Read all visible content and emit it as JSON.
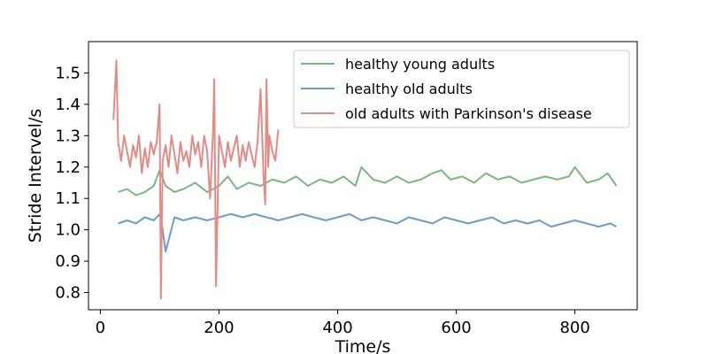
{
  "chart_data": {
    "type": "line",
    "title": "",
    "xlabel": "Time/s",
    "ylabel": "Stride Intervel/s",
    "xlim": [
      -20,
      905
    ],
    "ylim": [
      0.745,
      1.6
    ],
    "xticks": [
      0,
      200,
      400,
      600,
      800
    ],
    "xtick_labels": [
      "0",
      "200",
      "400",
      "600",
      "800"
    ],
    "yticks": [
      0.8,
      0.9,
      1.0,
      1.1,
      1.2,
      1.3,
      1.4,
      1.5
    ],
    "ytick_labels": [
      "0.8",
      "0.9",
      "1.0",
      "1.1",
      "1.2",
      "1.3",
      "1.4",
      "1.5"
    ],
    "grid": false,
    "legend_position": "top-right",
    "series": [
      {
        "name": "healthy young adults",
        "color": "#77b97f",
        "x": [
          30,
          45,
          60,
          75,
          90,
          100,
          110,
          125,
          140,
          160,
          180,
          200,
          215,
          230,
          250,
          270,
          290,
          310,
          330,
          350,
          370,
          390,
          410,
          430,
          440,
          460,
          480,
          500,
          520,
          540,
          560,
          575,
          590,
          610,
          630,
          650,
          670,
          690,
          710,
          730,
          750,
          770,
          790,
          800,
          820,
          840,
          855,
          870
        ],
        "y": [
          1.12,
          1.13,
          1.11,
          1.12,
          1.14,
          1.19,
          1.14,
          1.12,
          1.13,
          1.15,
          1.12,
          1.14,
          1.17,
          1.13,
          1.15,
          1.14,
          1.16,
          1.15,
          1.17,
          1.14,
          1.16,
          1.15,
          1.17,
          1.14,
          1.2,
          1.16,
          1.15,
          1.17,
          1.15,
          1.16,
          1.18,
          1.19,
          1.16,
          1.17,
          1.15,
          1.18,
          1.16,
          1.17,
          1.15,
          1.16,
          1.17,
          1.16,
          1.17,
          1.2,
          1.15,
          1.16,
          1.18,
          1.14
        ]
      },
      {
        "name": "healthy old adults",
        "color": "#6b9ccf",
        "x": [
          30,
          45,
          60,
          75,
          90,
          100,
          105,
          110,
          125,
          140,
          160,
          180,
          200,
          220,
          240,
          260,
          280,
          300,
          320,
          340,
          360,
          380,
          400,
          420,
          440,
          460,
          480,
          500,
          520,
          540,
          560,
          580,
          600,
          620,
          640,
          660,
          680,
          700,
          720,
          740,
          760,
          780,
          800,
          820,
          840,
          860,
          870
        ],
        "y": [
          1.02,
          1.03,
          1.02,
          1.04,
          1.03,
          1.05,
          1.0,
          0.93,
          1.04,
          1.03,
          1.04,
          1.03,
          1.04,
          1.05,
          1.04,
          1.05,
          1.04,
          1.03,
          1.04,
          1.05,
          1.04,
          1.03,
          1.04,
          1.05,
          1.03,
          1.04,
          1.03,
          1.02,
          1.04,
          1.03,
          1.02,
          1.04,
          1.03,
          1.02,
          1.03,
          1.04,
          1.02,
          1.03,
          1.02,
          1.03,
          1.01,
          1.02,
          1.03,
          1.02,
          1.01,
          1.02,
          1.01
        ]
      },
      {
        "name": "old adults with Parkinson's disease",
        "color": "#e48b86",
        "x": [
          22,
          27,
          30,
          35,
          40,
          45,
          50,
          55,
          60,
          65,
          70,
          75,
          80,
          85,
          90,
          95,
          100,
          102,
          105,
          110,
          115,
          120,
          125,
          130,
          135,
          140,
          145,
          150,
          155,
          160,
          165,
          170,
          175,
          180,
          185,
          190,
          192,
          195,
          200,
          205,
          210,
          215,
          220,
          225,
          230,
          235,
          240,
          245,
          250,
          255,
          260,
          265,
          270,
          275,
          278,
          280,
          283,
          285,
          290,
          295,
          300
        ],
        "y": [
          1.35,
          1.54,
          1.28,
          1.22,
          1.3,
          1.25,
          1.2,
          1.27,
          1.23,
          1.3,
          1.18,
          1.26,
          1.2,
          1.28,
          1.24,
          1.28,
          1.4,
          0.78,
          1.22,
          1.27,
          1.2,
          1.3,
          1.24,
          1.18,
          1.28,
          1.22,
          1.25,
          1.2,
          1.3,
          1.24,
          1.28,
          1.2,
          1.3,
          1.25,
          1.1,
          1.32,
          1.48,
          0.82,
          1.3,
          1.25,
          1.2,
          1.28,
          1.22,
          1.26,
          1.3,
          1.2,
          1.27,
          1.22,
          1.28,
          1.24,
          1.2,
          1.28,
          1.45,
          1.18,
          1.08,
          1.48,
          1.2,
          1.3,
          1.25,
          1.22,
          1.32
        ]
      }
    ]
  }
}
